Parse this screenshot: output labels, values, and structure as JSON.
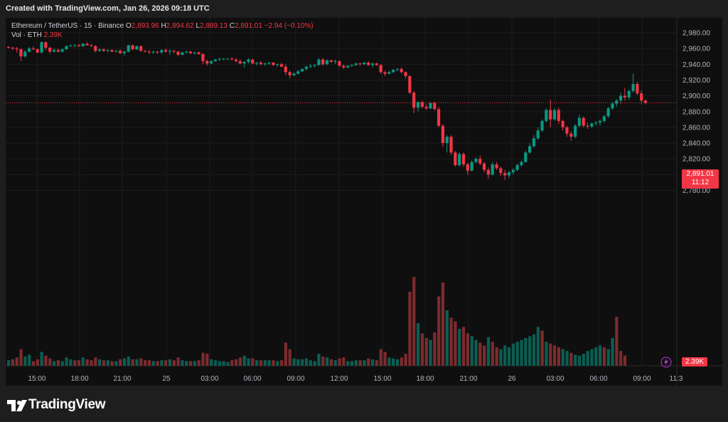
{
  "header": {
    "created_text": "Created with TradingView.com, Jan 26, 2026 09:18 UTC"
  },
  "legend": {
    "symbol": "Ethereum / TetherUS · 15 · Binance",
    "open_label": "O",
    "open_value": "2,893.96",
    "high_label": "H",
    "high_value": "2,894.62",
    "low_label": "L",
    "low_value": "2,889.13",
    "close_label": "C",
    "close_value": "2,891.01",
    "change_value": "−2.94 (−0.10%)",
    "volume_label": "Vol · ETH",
    "volume_value": "2.39K"
  },
  "price_tag": {
    "price": "2,891.01",
    "countdown": "11:12"
  },
  "volume_tag": "2.39K",
  "footer": {
    "brand": "TradingView"
  },
  "colors": {
    "up": "#089981",
    "down": "#f23645",
    "vol_up": "#0b5e52",
    "vol_down": "#7d2b2e",
    "background": "#0f0f0f",
    "grid": "#1c1c1c"
  },
  "chart_data": {
    "type": "candlestick",
    "symbol": "Ethereum / TetherUS",
    "interval": "15",
    "exchange": "Binance",
    "last_price": 2891.01,
    "last_price_line": "dotted",
    "y_ticks": [
      "2,980.00",
      "2,960.00",
      "2,940.00",
      "2,920.00",
      "2,900.00",
      "2,880.00",
      "2,860.00",
      "2,840.00",
      "2,820.00",
      "2,800.00",
      "2,780.00"
    ],
    "y_tick_values": [
      2980,
      2960,
      2940,
      2920,
      2900,
      2880,
      2860,
      2840,
      2820,
      2800,
      2780
    ],
    "x_ticks": [
      "15:00",
      "18:00",
      "21:00",
      "25",
      "03:00",
      "06:00",
      "09:00",
      "12:00",
      "15:00",
      "18:00",
      "21:00",
      "26",
      "03:00",
      "06:00",
      "09:00",
      "11:3"
    ],
    "ylim": [
      2770,
      2990
    ],
    "grid": true,
    "candles": [
      [
        2962,
        2963,
        2960,
        2961
      ],
      [
        2961,
        2962,
        2958,
        2960
      ],
      [
        2960,
        2962,
        2955,
        2959
      ],
      [
        2959,
        2960,
        2944,
        2950
      ],
      [
        2950,
        2958,
        2948,
        2956
      ],
      [
        2956,
        2962,
        2955,
        2960
      ],
      [
        2960,
        2963,
        2958,
        2959
      ],
      [
        2959,
        2960,
        2954,
        2955
      ],
      [
        2955,
        2969,
        2954,
        2968
      ],
      [
        2968,
        2969,
        2958,
        2961
      ],
      [
        2961,
        2962,
        2954,
        2956
      ],
      [
        2956,
        2960,
        2955,
        2958
      ],
      [
        2958,
        2960,
        2955,
        2956
      ],
      [
        2956,
        2960,
        2955,
        2959
      ],
      [
        2959,
        2964,
        2958,
        2963
      ],
      [
        2963,
        2965,
        2962,
        2964
      ],
      [
        2964,
        2966,
        2962,
        2964
      ],
      [
        2964,
        2966,
        2962,
        2963
      ],
      [
        2963,
        2967,
        2962,
        2966
      ],
      [
        2966,
        2968,
        2964,
        2964
      ],
      [
        2964,
        2966,
        2962,
        2963
      ],
      [
        2963,
        2964,
        2955,
        2957
      ],
      [
        2957,
        2960,
        2956,
        2959
      ],
      [
        2959,
        2960,
        2956,
        2957
      ],
      [
        2957,
        2959,
        2955,
        2958
      ],
      [
        2958,
        2959,
        2955,
        2956
      ],
      [
        2956,
        2958,
        2955,
        2957
      ],
      [
        2957,
        2959,
        2953,
        2954
      ],
      [
        2954,
        2957,
        2951,
        2956
      ],
      [
        2956,
        2965,
        2955,
        2964
      ],
      [
        2964,
        2965,
        2958,
        2959
      ],
      [
        2959,
        2964,
        2958,
        2963
      ],
      [
        2963,
        2964,
        2956,
        2957
      ],
      [
        2957,
        2958,
        2955,
        2956
      ],
      [
        2956,
        2958,
        2953,
        2955
      ],
      [
        2955,
        2957,
        2953,
        2956
      ],
      [
        2956,
        2957,
        2953,
        2955
      ],
      [
        2955,
        2959,
        2953,
        2958
      ],
      [
        2958,
        2960,
        2955,
        2956
      ],
      [
        2956,
        2959,
        2952,
        2957
      ],
      [
        2957,
        2958,
        2954,
        2956
      ],
      [
        2956,
        2957,
        2950,
        2952
      ],
      [
        2952,
        2956,
        2951,
        2955
      ],
      [
        2955,
        2957,
        2954,
        2956
      ],
      [
        2956,
        2957,
        2953,
        2954
      ],
      [
        2954,
        2956,
        2952,
        2955
      ],
      [
        2955,
        2956,
        2952,
        2953
      ],
      [
        2953,
        2954,
        2940,
        2944
      ],
      [
        2944,
        2946,
        2938,
        2941
      ],
      [
        2941,
        2945,
        2940,
        2944
      ],
      [
        2944,
        2947,
        2943,
        2946
      ],
      [
        2946,
        2948,
        2944,
        2947
      ],
      [
        2947,
        2948,
        2945,
        2947
      ],
      [
        2947,
        2948,
        2946,
        2947
      ],
      [
        2947,
        2949,
        2945,
        2946
      ],
      [
        2946,
        2948,
        2942,
        2944
      ],
      [
        2944,
        2946,
        2940,
        2941
      ],
      [
        2941,
        2944,
        2936,
        2943
      ],
      [
        2943,
        2948,
        2941,
        2946
      ],
      [
        2946,
        2947,
        2940,
        2941
      ],
      [
        2941,
        2943,
        2938,
        2942
      ],
      [
        2942,
        2944,
        2939,
        2940
      ],
      [
        2940,
        2942,
        2938,
        2941
      ],
      [
        2941,
        2943,
        2939,
        2942
      ],
      [
        2942,
        2943,
        2938,
        2939
      ],
      [
        2939,
        2941,
        2937,
        2940
      ],
      [
        2940,
        2942,
        2936,
        2937
      ],
      [
        2937,
        2940,
        2926,
        2930
      ],
      [
        2930,
        2932,
        2922,
        2926
      ],
      [
        2926,
        2930,
        2925,
        2928
      ],
      [
        2928,
        2933,
        2927,
        2931
      ],
      [
        2931,
        2935,
        2930,
        2934
      ],
      [
        2934,
        2938,
        2932,
        2937
      ],
      [
        2937,
        2940,
        2935,
        2938
      ],
      [
        2938,
        2940,
        2936,
        2939
      ],
      [
        2939,
        2948,
        2938,
        2946
      ],
      [
        2946,
        2948,
        2938,
        2940
      ],
      [
        2940,
        2946,
        2939,
        2945
      ],
      [
        2945,
        2946,
        2942,
        2943
      ],
      [
        2943,
        2946,
        2940,
        2944
      ],
      [
        2944,
        2945,
        2937,
        2938
      ],
      [
        2938,
        2940,
        2934,
        2936
      ],
      [
        2936,
        2939,
        2935,
        2938
      ],
      [
        2938,
        2940,
        2937,
        2939
      ],
      [
        2939,
        2942,
        2938,
        2941
      ],
      [
        2941,
        2942,
        2938,
        2940
      ],
      [
        2940,
        2943,
        2939,
        2942
      ],
      [
        2942,
        2944,
        2938,
        2939
      ],
      [
        2939,
        2942,
        2936,
        2941
      ],
      [
        2941,
        2942,
        2938,
        2939
      ],
      [
        2939,
        2940,
        2928,
        2930
      ],
      [
        2930,
        2932,
        2925,
        2928
      ],
      [
        2928,
        2932,
        2927,
        2930
      ],
      [
        2930,
        2934,
        2929,
        2933
      ],
      [
        2933,
        2935,
        2931,
        2934
      ],
      [
        2934,
        2936,
        2928,
        2930
      ],
      [
        2930,
        2931,
        2922,
        2925
      ],
      [
        2925,
        2926,
        2902,
        2904
      ],
      [
        2904,
        2906,
        2878,
        2885
      ],
      [
        2885,
        2893,
        2880,
        2892
      ],
      [
        2892,
        2894,
        2884,
        2886
      ],
      [
        2886,
        2889,
        2882,
        2884
      ],
      [
        2884,
        2892,
        2883,
        2891
      ],
      [
        2891,
        2893,
        2882,
        2883
      ],
      [
        2883,
        2886,
        2860,
        2862
      ],
      [
        2862,
        2864,
        2835,
        2840
      ],
      [
        2840,
        2850,
        2828,
        2848
      ],
      [
        2848,
        2850,
        2825,
        2828
      ],
      [
        2828,
        2830,
        2810,
        2812
      ],
      [
        2812,
        2828,
        2810,
        2826
      ],
      [
        2826,
        2828,
        2810,
        2813
      ],
      [
        2813,
        2815,
        2800,
        2805
      ],
      [
        2805,
        2818,
        2804,
        2816
      ],
      [
        2816,
        2822,
        2814,
        2820
      ],
      [
        2820,
        2824,
        2812,
        2814
      ],
      [
        2814,
        2816,
        2803,
        2806
      ],
      [
        2806,
        2809,
        2795,
        2800
      ],
      [
        2800,
        2816,
        2799,
        2813
      ],
      [
        2813,
        2816,
        2806,
        2808
      ],
      [
        2808,
        2810,
        2798,
        2802
      ],
      [
        2802,
        2806,
        2793,
        2799
      ],
      [
        2799,
        2805,
        2795,
        2803
      ],
      [
        2803,
        2808,
        2800,
        2806
      ],
      [
        2806,
        2814,
        2804,
        2812
      ],
      [
        2812,
        2818,
        2810,
        2816
      ],
      [
        2816,
        2830,
        2815,
        2828
      ],
      [
        2828,
        2840,
        2826,
        2836
      ],
      [
        2836,
        2850,
        2834,
        2846
      ],
      [
        2846,
        2860,
        2844,
        2856
      ],
      [
        2856,
        2870,
        2854,
        2868
      ],
      [
        2868,
        2884,
        2866,
        2882
      ],
      [
        2882,
        2895,
        2860,
        2870
      ],
      [
        2870,
        2884,
        2868,
        2882
      ],
      [
        2882,
        2885,
        2864,
        2868
      ],
      [
        2868,
        2870,
        2856,
        2860
      ],
      [
        2860,
        2862,
        2848,
        2852
      ],
      [
        2852,
        2855,
        2843,
        2848
      ],
      [
        2848,
        2864,
        2846,
        2862
      ],
      [
        2862,
        2876,
        2860,
        2872
      ],
      [
        2872,
        2874,
        2860,
        2862
      ],
      [
        2862,
        2866,
        2858,
        2861
      ],
      [
        2861,
        2866,
        2859,
        2865
      ],
      [
        2865,
        2868,
        2862,
        2866
      ],
      [
        2866,
        2870,
        2862,
        2868
      ],
      [
        2868,
        2876,
        2866,
        2874
      ],
      [
        2874,
        2886,
        2872,
        2884
      ],
      [
        2884,
        2892,
        2882,
        2890
      ],
      [
        2890,
        2896,
        2886,
        2894
      ],
      [
        2894,
        2904,
        2890,
        2900
      ],
      [
        2900,
        2910,
        2894,
        2898
      ],
      [
        2898,
        2908,
        2895,
        2906
      ],
      [
        2906,
        2928,
        2904,
        2915
      ],
      [
        2915,
        2918,
        2901,
        2903
      ],
      [
        2903,
        2907,
        2890,
        2894
      ],
      [
        2894,
        2895,
        2889,
        2891
      ]
    ],
    "volumes": [
      [
        0.6,
        0
      ],
      [
        0.7,
        1
      ],
      [
        0.9,
        1
      ],
      [
        1.8,
        1
      ],
      [
        1.0,
        0
      ],
      [
        1.2,
        0
      ],
      [
        0.5,
        1
      ],
      [
        0.7,
        1
      ],
      [
        1.5,
        0
      ],
      [
        1.1,
        1
      ],
      [
        0.8,
        1
      ],
      [
        0.5,
        0
      ],
      [
        0.6,
        1
      ],
      [
        0.5,
        0
      ],
      [
        0.9,
        0
      ],
      [
        0.7,
        0
      ],
      [
        0.6,
        1
      ],
      [
        0.6,
        1
      ],
      [
        0.9,
        0
      ],
      [
        0.7,
        1
      ],
      [
        0.6,
        1
      ],
      [
        0.9,
        1
      ],
      [
        0.7,
        0
      ],
      [
        0.6,
        1
      ],
      [
        0.6,
        0
      ],
      [
        0.5,
        1
      ],
      [
        0.5,
        0
      ],
      [
        0.7,
        1
      ],
      [
        0.8,
        0
      ],
      [
        1.0,
        0
      ],
      [
        0.7,
        1
      ],
      [
        0.7,
        0
      ],
      [
        0.8,
        1
      ],
      [
        0.6,
        1
      ],
      [
        0.6,
        1
      ],
      [
        0.5,
        0
      ],
      [
        0.5,
        1
      ],
      [
        0.6,
        0
      ],
      [
        0.6,
        1
      ],
      [
        0.7,
        0
      ],
      [
        0.6,
        1
      ],
      [
        0.9,
        1
      ],
      [
        0.6,
        0
      ],
      [
        0.5,
        0
      ],
      [
        0.5,
        1
      ],
      [
        0.5,
        0
      ],
      [
        0.6,
        1
      ],
      [
        1.4,
        1
      ],
      [
        1.3,
        1
      ],
      [
        0.7,
        0
      ],
      [
        0.6,
        0
      ],
      [
        0.5,
        0
      ],
      [
        0.5,
        0
      ],
      [
        0.4,
        0
      ],
      [
        0.6,
        1
      ],
      [
        0.7,
        1
      ],
      [
        0.9,
        1
      ],
      [
        1.1,
        0
      ],
      [
        0.8,
        0
      ],
      [
        0.8,
        1
      ],
      [
        0.6,
        0
      ],
      [
        0.6,
        1
      ],
      [
        0.6,
        0
      ],
      [
        0.6,
        0
      ],
      [
        0.6,
        1
      ],
      [
        0.5,
        0
      ],
      [
        0.6,
        1
      ],
      [
        2.5,
        1
      ],
      [
        1.8,
        1
      ],
      [
        0.8,
        0
      ],
      [
        0.7,
        0
      ],
      [
        0.7,
        0
      ],
      [
        0.8,
        0
      ],
      [
        0.6,
        0
      ],
      [
        0.5,
        0
      ],
      [
        1.3,
        0
      ],
      [
        1.0,
        1
      ],
      [
        0.9,
        0
      ],
      [
        0.7,
        1
      ],
      [
        0.6,
        0
      ],
      [
        0.8,
        1
      ],
      [
        0.9,
        1
      ],
      [
        0.5,
        0
      ],
      [
        0.5,
        0
      ],
      [
        0.6,
        0
      ],
      [
        0.6,
        1
      ],
      [
        0.6,
        0
      ],
      [
        0.8,
        1
      ],
      [
        0.7,
        0
      ],
      [
        0.6,
        1
      ],
      [
        1.8,
        1
      ],
      [
        1.5,
        1
      ],
      [
        0.9,
        0
      ],
      [
        0.8,
        0
      ],
      [
        0.7,
        0
      ],
      [
        0.9,
        1
      ],
      [
        1.3,
        1
      ],
      [
        8.0,
        1
      ],
      [
        9.6,
        1
      ],
      [
        4.6,
        0
      ],
      [
        3.5,
        1
      ],
      [
        3.0,
        1
      ],
      [
        2.8,
        0
      ],
      [
        3.6,
        1
      ],
      [
        7.5,
        1
      ],
      [
        9.0,
        1
      ],
      [
        6.0,
        0
      ],
      [
        5.2,
        1
      ],
      [
        4.8,
        1
      ],
      [
        4.0,
        0
      ],
      [
        4.2,
        1
      ],
      [
        3.5,
        1
      ],
      [
        3.2,
        0
      ],
      [
        2.8,
        0
      ],
      [
        2.5,
        1
      ],
      [
        2.2,
        1
      ],
      [
        3.1,
        0
      ],
      [
        2.6,
        1
      ],
      [
        2.0,
        1
      ],
      [
        1.8,
        0
      ],
      [
        2.2,
        0
      ],
      [
        2.0,
        0
      ],
      [
        2.4,
        0
      ],
      [
        2.6,
        0
      ],
      [
        2.8,
        0
      ],
      [
        3.0,
        0
      ],
      [
        3.2,
        0
      ],
      [
        3.4,
        0
      ],
      [
        4.2,
        0
      ],
      [
        3.8,
        1
      ],
      [
        2.6,
        0
      ],
      [
        2.4,
        1
      ],
      [
        2.2,
        1
      ],
      [
        2.0,
        1
      ],
      [
        1.8,
        0
      ],
      [
        1.6,
        0
      ],
      [
        1.4,
        1
      ],
      [
        1.2,
        0
      ],
      [
        1.1,
        0
      ],
      [
        1.3,
        0
      ],
      [
        1.6,
        0
      ],
      [
        1.8,
        0
      ],
      [
        2.0,
        0
      ],
      [
        2.2,
        0
      ],
      [
        2.0,
        1
      ],
      [
        1.8,
        0
      ],
      [
        3.0,
        0
      ],
      [
        5.3,
        1
      ],
      [
        1.6,
        1
      ],
      [
        1.1,
        1
      ]
    ]
  }
}
